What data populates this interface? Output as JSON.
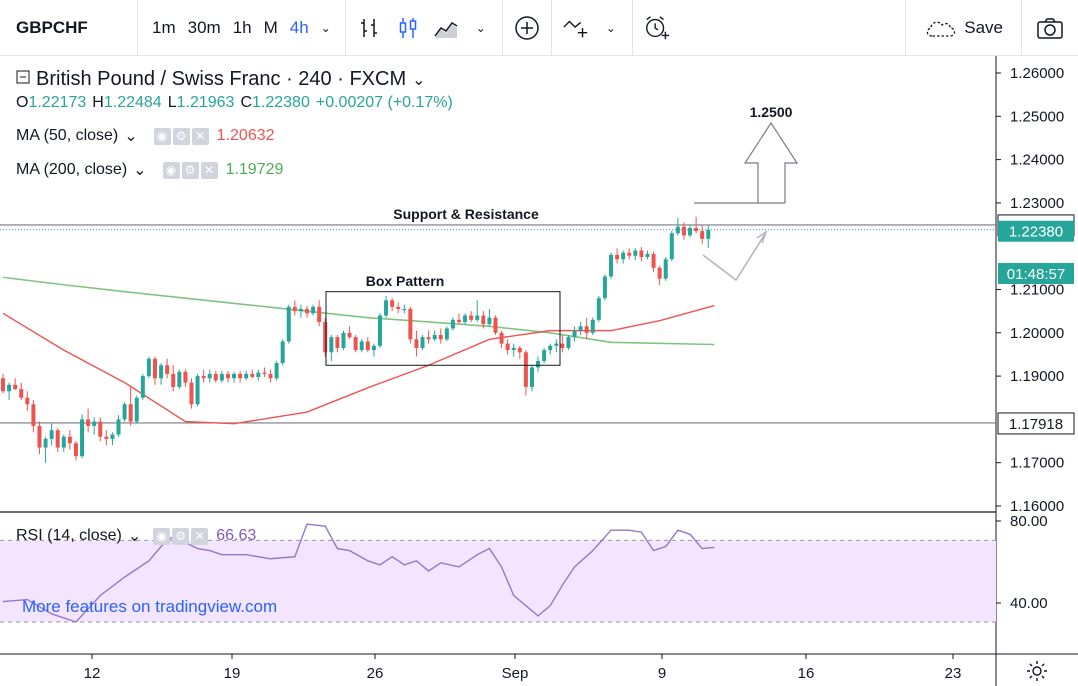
{
  "toolbar": {
    "symbol": "GBPCHF",
    "intervals": [
      {
        "label": "1m",
        "active": false
      },
      {
        "label": "30m",
        "active": false
      },
      {
        "label": "1h",
        "active": false
      },
      {
        "label": "M",
        "active": false
      },
      {
        "label": "4h",
        "active": true
      }
    ],
    "chevron": "⌄",
    "save_label": "Save",
    "icons": [
      "bar-chart-style-icon",
      "candlestick-icon",
      "area-chart-icon",
      "add-indicator-icon",
      "compare-icon",
      "alert-clock-icon",
      "cloud-save-icon",
      "camera-icon"
    ]
  },
  "legend": {
    "title": "British Pound / Swiss Franc · 240 · FXCM",
    "open_label": "O",
    "open": "1.22173",
    "high_label": "H",
    "high": "1.22484",
    "low_label": "L",
    "low": "1.21963",
    "close_label": "C",
    "close": "1.22380",
    "change": "+0.00207 (+0.17%)",
    "ma50": {
      "label": "MA (50, close)",
      "value": "1.20632",
      "color": "#ef5350"
    },
    "ma200": {
      "label": "MA (200, close)",
      "value": "1.19729",
      "color": "#4caf50"
    },
    "rsi": {
      "label": "RSI (14, close)",
      "value": "66.63",
      "color": "#7e57c2"
    }
  },
  "watermark": "More features on tradingview.com",
  "colors": {
    "up": "#26a69a",
    "down": "#ef5350",
    "ma50": "#ef5350",
    "ma200": "#7fc47f",
    "rsi": "#9575cd",
    "rsi_band": "#f3e5ff",
    "level_line": "#787b86",
    "annotation": "#787b86",
    "price_line": "#26a69a"
  },
  "chart_data": {
    "type": "candlestick",
    "title": "British Pound / Swiss Franc · 240 · FXCM",
    "x_ticks": [
      "12",
      "19",
      "26",
      "Sep",
      "9",
      "16",
      "23"
    ],
    "y_ticks": [
      "1.26000",
      "1.25000",
      "1.24000",
      "1.23000",
      "1.21000",
      "1.20000",
      "1.19000",
      "1.17000",
      "1.16000"
    ],
    "ylim": [
      1.158,
      1.263
    ],
    "price_labels": [
      {
        "value": 1.22491,
        "text": "1.22491",
        "style": "outline"
      },
      {
        "value": 1.2238,
        "text": "1.22380",
        "style": "filled"
      },
      {
        "countdown": "01:48:57"
      },
      {
        "value": 1.17918,
        "text": "1.17918",
        "style": "outline"
      }
    ],
    "horizontal_levels": [
      1.22491,
      1.17918
    ],
    "annotations": [
      {
        "text": "Support & Resistance",
        "value": 1.22491
      },
      {
        "text": "Box Pattern",
        "box": {
          "from": 47,
          "to": 80,
          "top": 1.2095,
          "bottom": 1.1925
        }
      },
      {
        "text": "1.2500",
        "target": 1.25
      }
    ],
    "candles": [
      [
        1.1895,
        1.1905,
        1.186,
        1.1865
      ],
      [
        1.1865,
        1.1885,
        1.1845,
        1.188
      ],
      [
        1.188,
        1.1895,
        1.1868,
        1.187
      ],
      [
        1.187,
        1.1885,
        1.1845,
        1.185
      ],
      [
        1.185,
        1.1865,
        1.182,
        1.1835
      ],
      [
        1.1835,
        1.1845,
        1.177,
        1.1785
      ],
      [
        1.1785,
        1.1795,
        1.172,
        1.1735
      ],
      [
        1.1735,
        1.176,
        1.17,
        1.1755
      ],
      [
        1.1755,
        1.179,
        1.174,
        1.1775
      ],
      [
        1.1775,
        1.178,
        1.1725,
        1.1735
      ],
      [
        1.1735,
        1.1765,
        1.1725,
        1.176
      ],
      [
        1.176,
        1.1775,
        1.173,
        1.1745
      ],
      [
        1.1745,
        1.175,
        1.1705,
        1.1715
      ],
      [
        1.1715,
        1.1812,
        1.171,
        1.18
      ],
      [
        1.18,
        1.1825,
        1.177,
        1.1785
      ],
      [
        1.1785,
        1.1805,
        1.1765,
        1.1795
      ],
      [
        1.1795,
        1.1805,
        1.175,
        1.176
      ],
      [
        1.176,
        1.1775,
        1.174,
        1.1755
      ],
      [
        1.1755,
        1.177,
        1.174,
        1.1765
      ],
      [
        1.1765,
        1.181,
        1.176,
        1.18
      ],
      [
        1.18,
        1.184,
        1.1795,
        1.1835
      ],
      [
        1.1835,
        1.1875,
        1.1785,
        1.1795
      ],
      [
        1.1795,
        1.1855,
        1.179,
        1.185
      ],
      [
        1.185,
        1.1905,
        1.1845,
        1.19
      ],
      [
        1.19,
        1.1945,
        1.1895,
        1.194
      ],
      [
        1.194,
        1.1945,
        1.188,
        1.1895
      ],
      [
        1.1895,
        1.193,
        1.188,
        1.1925
      ],
      [
        1.1925,
        1.194,
        1.1895,
        1.1905
      ],
      [
        1.1905,
        1.1925,
        1.1865,
        1.1875
      ],
      [
        1.1875,
        1.1915,
        1.187,
        1.191
      ],
      [
        1.191,
        1.1915,
        1.1875,
        1.1885
      ],
      [
        1.1885,
        1.1895,
        1.1825,
        1.1835
      ],
      [
        1.1835,
        1.1905,
        1.183,
        1.19
      ],
      [
        1.19,
        1.1915,
        1.1885,
        1.1895
      ],
      [
        1.1895,
        1.1915,
        1.1885,
        1.1905
      ],
      [
        1.1905,
        1.1912,
        1.1885,
        1.189
      ],
      [
        1.189,
        1.1912,
        1.1885,
        1.1905
      ],
      [
        1.1905,
        1.1912,
        1.1885,
        1.1895
      ],
      [
        1.1895,
        1.191,
        1.1885,
        1.1905
      ],
      [
        1.1905,
        1.1912,
        1.1885,
        1.1895
      ],
      [
        1.1895,
        1.1912,
        1.189,
        1.1905
      ],
      [
        1.1905,
        1.1915,
        1.1895,
        1.1898
      ],
      [
        1.1898,
        1.1915,
        1.189,
        1.1908
      ],
      [
        1.1908,
        1.192,
        1.1898,
        1.1905
      ],
      [
        1.1905,
        1.1915,
        1.1885,
        1.1895
      ],
      [
        1.1895,
        1.1935,
        1.189,
        1.193
      ],
      [
        1.193,
        1.1985,
        1.1925,
        1.198
      ],
      [
        1.198,
        1.2065,
        1.1975,
        1.206
      ],
      [
        1.206,
        1.2075,
        1.204,
        1.205
      ],
      [
        1.205,
        1.2065,
        1.2035,
        1.2055
      ],
      [
        1.2055,
        1.2062,
        1.2035,
        1.2045
      ],
      [
        1.2045,
        1.2065,
        1.204,
        1.206
      ],
      [
        1.206,
        1.2075,
        1.2015,
        1.2025
      ],
      [
        1.2025,
        1.2035,
        1.1945,
        1.1955
      ],
      [
        1.1955,
        1.1995,
        1.1935,
        1.199
      ],
      [
        1.199,
        1.1995,
        1.1955,
        1.1965
      ],
      [
        1.1965,
        1.2005,
        1.196,
        1.2
      ],
      [
        1.2,
        1.2015,
        1.1985,
        1.199
      ],
      [
        1.199,
        1.1995,
        1.1955,
        1.196
      ],
      [
        1.196,
        1.1985,
        1.1955,
        1.198
      ],
      [
        1.198,
        1.199,
        1.1955,
        1.196
      ],
      [
        1.196,
        1.1975,
        1.1945,
        1.197
      ],
      [
        1.197,
        1.2045,
        1.1965,
        1.204
      ],
      [
        1.204,
        1.2085,
        1.2035,
        1.2075
      ],
      [
        1.2075,
        1.208,
        1.205,
        1.206
      ],
      [
        1.206,
        1.207,
        1.2045,
        1.2055
      ],
      [
        1.2055,
        1.2065,
        1.2045,
        1.2055
      ],
      [
        1.2055,
        1.206,
        1.1975,
        1.1985
      ],
      [
        1.1985,
        1.2005,
        1.1945,
        1.1965
      ],
      [
        1.1965,
        1.1995,
        1.196,
        1.199
      ],
      [
        1.199,
        1.2005,
        1.1975,
        1.1985
      ],
      [
        1.1985,
        1.2005,
        1.198,
        1.1995
      ],
      [
        1.1995,
        1.201,
        1.1975,
        1.1985
      ],
      [
        1.1985,
        1.2015,
        1.198,
        1.201
      ],
      [
        1.201,
        1.2035,
        1.2005,
        1.203
      ],
      [
        1.203,
        1.2045,
        1.202,
        1.2025
      ],
      [
        1.2025,
        1.2045,
        1.202,
        1.204
      ],
      [
        1.204,
        1.205,
        1.2025,
        1.203
      ],
      [
        1.203,
        1.2075,
        1.2025,
        1.204
      ],
      [
        1.204,
        1.205,
        1.201,
        1.202
      ],
      [
        1.202,
        1.2055,
        1.2015,
        1.2035
      ],
      [
        1.2035,
        1.204,
        1.1995,
        1.2
      ],
      [
        1.2,
        1.2005,
        1.1965,
        1.1975
      ],
      [
        1.1975,
        1.1985,
        1.195,
        1.196
      ],
      [
        1.196,
        1.1975,
        1.1945,
        1.1965
      ],
      [
        1.1965,
        1.197,
        1.194,
        1.1955
      ],
      [
        1.1955,
        1.196,
        1.1855,
        1.1875
      ],
      [
        1.1875,
        1.1925,
        1.1865,
        1.192
      ],
      [
        1.192,
        1.1945,
        1.191,
        1.1935
      ],
      [
        1.1935,
        1.1965,
        1.193,
        1.196
      ],
      [
        1.196,
        1.1975,
        1.195,
        1.197
      ],
      [
        1.197,
        1.1985,
        1.1955,
        1.1975
      ],
      [
        1.1975,
        1.1995,
        1.1955,
        1.1965
      ],
      [
        1.1965,
        1.1995,
        1.196,
        1.199
      ],
      [
        1.199,
        1.2015,
        1.198,
        1.2005
      ],
      [
        1.2005,
        1.2025,
        1.1995,
        1.2015
      ],
      [
        1.2015,
        1.2035,
        1.1985,
        1.2
      ],
      [
        1.2,
        1.2035,
        1.1995,
        1.203
      ],
      [
        1.203,
        1.2085,
        1.2025,
        1.208
      ],
      [
        1.208,
        1.2135,
        1.2075,
        1.213
      ],
      [
        1.213,
        1.2185,
        1.2125,
        1.218
      ],
      [
        1.218,
        1.2195,
        1.216,
        1.217
      ],
      [
        1.217,
        1.219,
        1.216,
        1.2185
      ],
      [
        1.2185,
        1.2195,
        1.217,
        1.2178
      ],
      [
        1.2178,
        1.2195,
        1.2168,
        1.219
      ],
      [
        1.219,
        1.2198,
        1.2165,
        1.2175
      ],
      [
        1.2175,
        1.219,
        1.217,
        1.2182
      ],
      [
        1.2182,
        1.2188,
        1.214,
        1.215
      ],
      [
        1.215,
        1.2155,
        1.211,
        1.2125
      ],
      [
        1.2125,
        1.2175,
        1.212,
        1.217
      ],
      [
        1.217,
        1.2235,
        1.2165,
        1.223
      ],
      [
        1.223,
        1.2265,
        1.2225,
        1.2245
      ],
      [
        1.2245,
        1.2255,
        1.2215,
        1.2225
      ],
      [
        1.2225,
        1.2248,
        1.222,
        1.2242
      ],
      [
        1.2242,
        1.2268,
        1.223,
        1.2235
      ],
      [
        1.2235,
        1.2248,
        1.2205,
        1.2217
      ],
      [
        1.2217,
        1.2248,
        1.2196,
        1.2238
      ]
    ],
    "ma50": [
      [
        0,
        1.2045
      ],
      [
        10,
        1.196
      ],
      [
        20,
        1.1885
      ],
      [
        30,
        1.1795
      ],
      [
        38,
        1.179
      ],
      [
        50,
        1.1817
      ],
      [
        60,
        1.1873
      ],
      [
        70,
        1.1925
      ],
      [
        80,
        1.1985
      ],
      [
        90,
        1.2005
      ],
      [
        100,
        1.2005
      ],
      [
        108,
        1.2028
      ],
      [
        117,
        1.2063
      ]
    ],
    "ma200": [
      [
        0,
        1.2128
      ],
      [
        10,
        1.2111
      ],
      [
        20,
        1.2095
      ],
      [
        30,
        1.208
      ],
      [
        40,
        1.2065
      ],
      [
        50,
        1.205
      ],
      [
        60,
        1.2035
      ],
      [
        70,
        1.2025
      ],
      [
        80,
        1.2015
      ],
      [
        90,
        1.2
      ],
      [
        100,
        1.1978
      ],
      [
        110,
        1.1975
      ],
      [
        117,
        1.1973
      ]
    ],
    "rsi": {
      "ylim": [
        20,
        82
      ],
      "y_ticks": [
        "80.00",
        "40.00"
      ],
      "bands": [
        70,
        30
      ],
      "points": [
        [
          0,
          40
        ],
        [
          4,
          41
        ],
        [
          8,
          34
        ],
        [
          12,
          30
        ],
        [
          16,
          43
        ],
        [
          20,
          52
        ],
        [
          24,
          60
        ],
        [
          26,
          67
        ],
        [
          28,
          72
        ],
        [
          30,
          69
        ],
        [
          32,
          66
        ],
        [
          34,
          65
        ],
        [
          36,
          63
        ],
        [
          40,
          63
        ],
        [
          44,
          61
        ],
        [
          48,
          62
        ],
        [
          50,
          78
        ],
        [
          53,
          77
        ],
        [
          55,
          66
        ],
        [
          57,
          65
        ],
        [
          60,
          60
        ],
        [
          62,
          58
        ],
        [
          64,
          62
        ],
        [
          66,
          58
        ],
        [
          68,
          60
        ],
        [
          70,
          55
        ],
        [
          72,
          59
        ],
        [
          75,
          57
        ],
        [
          78,
          63
        ],
        [
          80,
          66
        ],
        [
          82,
          57
        ],
        [
          84,
          43
        ],
        [
          86,
          38
        ],
        [
          88,
          33
        ],
        [
          90,
          38
        ],
        [
          92,
          48
        ],
        [
          94,
          57
        ],
        [
          97,
          65
        ],
        [
          100,
          75
        ],
        [
          103,
          75
        ],
        [
          105,
          74
        ],
        [
          107,
          65
        ],
        [
          109,
          67
        ],
        [
          111,
          75
        ],
        [
          113,
          73
        ],
        [
          115,
          66
        ],
        [
          117,
          66.6
        ]
      ]
    }
  }
}
